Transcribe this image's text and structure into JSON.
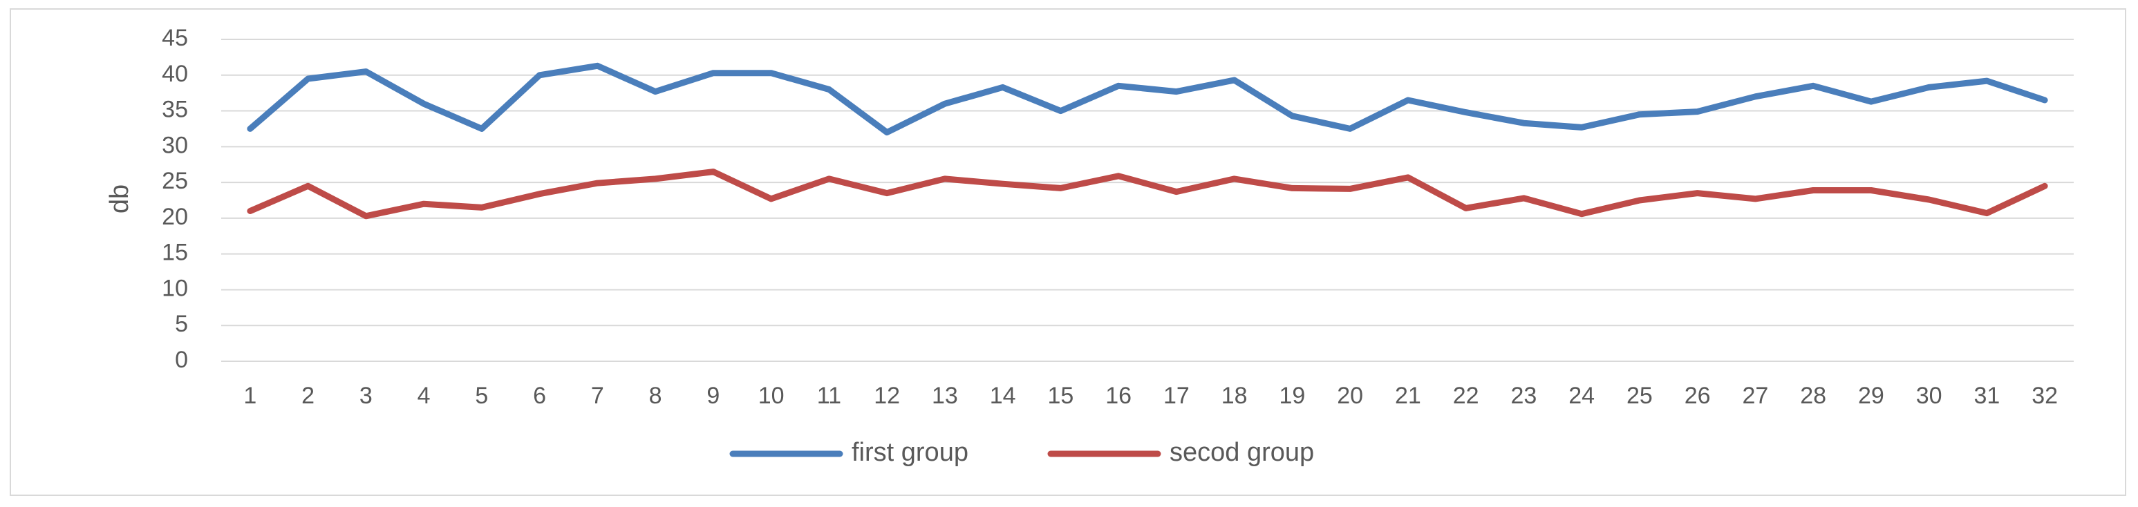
{
  "chart_data": {
    "type": "line",
    "title": "",
    "xlabel": "",
    "ylabel": "db",
    "ylim": [
      0,
      45
    ],
    "yticks": [
      0,
      5,
      10,
      15,
      20,
      25,
      30,
      35,
      40,
      45
    ],
    "grid": true,
    "legend_position": "bottom",
    "categories": [
      "1",
      "2",
      "3",
      "4",
      "5",
      "6",
      "7",
      "8",
      "9",
      "10",
      "11",
      "12",
      "13",
      "14",
      "15",
      "16",
      "17",
      "18",
      "19",
      "20",
      "21",
      "22",
      "23",
      "24",
      "25",
      "26",
      "27",
      "28",
      "29",
      "30",
      "31",
      "32"
    ],
    "series": [
      {
        "name": "first group",
        "color": "#4a7ebb",
        "values": [
          32.5,
          39.5,
          40.5,
          36,
          32.5,
          40,
          41.3,
          37.7,
          40.3,
          40.3,
          38,
          32,
          36,
          38.3,
          35,
          38.5,
          37.7,
          39.3,
          34.3,
          32.5,
          36.5,
          34.8,
          33.3,
          32.7,
          34.5,
          34.9,
          37,
          38.5,
          36.3,
          38.3,
          39.2,
          36.5
        ]
      },
      {
        "name": "secod group",
        "color": "#be4b48",
        "values": [
          21,
          24.5,
          20.3,
          22,
          21.5,
          23.4,
          24.9,
          25.5,
          26.5,
          22.7,
          25.5,
          23.5,
          25.5,
          24.8,
          24.2,
          25.9,
          23.7,
          25.5,
          24.2,
          24.1,
          25.7,
          21.4,
          22.8,
          20.6,
          22.5,
          23.5,
          22.7,
          23.9,
          23.9,
          22.6,
          20.7,
          24.5
        ]
      }
    ]
  }
}
